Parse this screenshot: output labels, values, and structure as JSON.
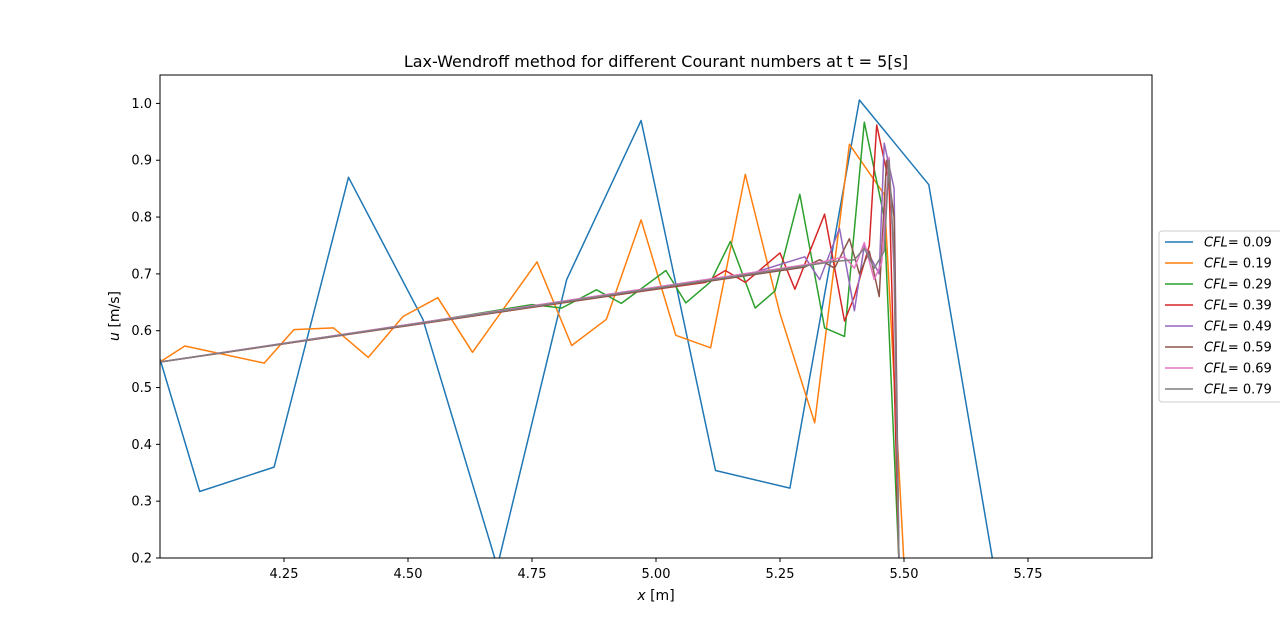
{
  "chart_data": {
    "type": "line",
    "title": "Lax-Wendroff method for different Courant numbers at t = 5[s]",
    "xlabel_var": "x",
    "xlabel_unit": " [m]",
    "ylabel_var": "u",
    "ylabel_unit": " [m/s]",
    "xlim": [
      4.0,
      6.0
    ],
    "ylim": [
      0.2,
      1.05
    ],
    "xticks": [
      "4.25",
      "4.50",
      "4.75",
      "5.00",
      "5.25",
      "5.50",
      "5.75"
    ],
    "xtick_values": [
      4.25,
      4.5,
      4.75,
      5.0,
      5.25,
      5.5,
      5.75
    ],
    "yticks": [
      "0.2",
      "0.3",
      "0.4",
      "0.5",
      "0.6",
      "0.7",
      "0.8",
      "0.9",
      "1.0"
    ],
    "ytick_values": [
      0.2,
      0.3,
      0.4,
      0.5,
      0.6,
      0.7,
      0.8,
      0.9,
      1.0
    ],
    "legend_position": "outside-right",
    "legend_var": "CFL",
    "series": [
      {
        "name": "= 0.09",
        "color": "#1f77b4",
        "x": [
          4.0,
          4.08,
          4.23,
          4.38,
          4.53,
          4.68,
          4.82,
          4.97,
          5.12,
          5.27,
          5.41,
          5.55,
          5.68
        ],
        "y": [
          0.55,
          0.317,
          0.36,
          0.87,
          0.62,
          0.185,
          0.69,
          0.97,
          0.354,
          0.323,
          1.006,
          0.857,
          0.19
        ]
      },
      {
        "name": "= 0.19",
        "color": "#ff7f0e",
        "x": [
          4.0,
          4.05,
          4.21,
          4.27,
          4.35,
          4.42,
          4.49,
          4.56,
          4.63,
          4.76,
          4.83,
          4.9,
          4.97,
          5.04,
          5.11,
          5.18,
          5.25,
          5.32,
          5.39,
          5.46,
          5.5
        ],
        "y": [
          0.545,
          0.573,
          0.543,
          0.602,
          0.605,
          0.553,
          0.625,
          0.658,
          0.562,
          0.721,
          0.574,
          0.62,
          0.795,
          0.592,
          0.57,
          0.875,
          0.63,
          0.438,
          0.928,
          0.84,
          0.19
        ]
      },
      {
        "name": "= 0.29",
        "color": "#2ca02c",
        "x": [
          4.0,
          4.5,
          4.75,
          4.81,
          4.88,
          4.93,
          5.02,
          5.06,
          5.11,
          5.15,
          5.2,
          5.24,
          5.29,
          5.34,
          5.38,
          5.42,
          5.46,
          5.49
        ],
        "y": [
          0.545,
          0.61,
          0.646,
          0.64,
          0.672,
          0.648,
          0.706,
          0.649,
          0.686,
          0.757,
          0.64,
          0.67,
          0.84,
          0.605,
          0.59,
          0.967,
          0.8,
          0.19
        ]
      },
      {
        "name": "= 0.39",
        "color": "#d62728",
        "x": [
          4.0,
          5.0,
          5.1,
          5.14,
          5.18,
          5.25,
          5.28,
          5.34,
          5.38,
          5.4,
          5.43,
          5.445,
          5.47,
          5.49
        ],
        "y": [
          0.545,
          0.673,
          0.685,
          0.706,
          0.685,
          0.737,
          0.673,
          0.805,
          0.617,
          0.66,
          0.75,
          0.962,
          0.86,
          0.19
        ]
      },
      {
        "name": "= 0.49",
        "color": "#9467bd",
        "x": [
          4.0,
          5.2,
          5.3,
          5.33,
          5.37,
          5.4,
          5.42,
          5.45,
          5.46,
          5.48,
          5.49
        ],
        "y": [
          0.545,
          0.703,
          0.73,
          0.69,
          0.78,
          0.635,
          0.75,
          0.7,
          0.93,
          0.85,
          0.19
        ]
      },
      {
        "name": "= 0.59",
        "color": "#8c564b",
        "x": [
          4.0,
          5.3,
          5.33,
          5.36,
          5.39,
          5.41,
          5.43,
          5.45,
          5.465,
          5.48,
          5.49
        ],
        "y": [
          0.545,
          0.712,
          0.725,
          0.71,
          0.762,
          0.7,
          0.74,
          0.66,
          0.9,
          0.8,
          0.19
        ]
      },
      {
        "name": "= 0.69",
        "color": "#e377c2",
        "x": [
          4.0,
          5.33,
          5.38,
          5.4,
          5.42,
          5.44,
          5.455,
          5.47,
          5.48,
          5.49
        ],
        "y": [
          0.545,
          0.72,
          0.73,
          0.71,
          0.755,
          0.69,
          0.72,
          0.905,
          0.7,
          0.19
        ]
      },
      {
        "name": "= 0.79",
        "color": "#7f7f7f",
        "x": [
          4.0,
          5.36,
          5.4,
          5.42,
          5.44,
          5.46,
          5.47,
          5.48,
          5.49
        ],
        "y": [
          0.545,
          0.722,
          0.725,
          0.745,
          0.71,
          0.74,
          0.9,
          0.72,
          0.19
        ]
      }
    ]
  }
}
